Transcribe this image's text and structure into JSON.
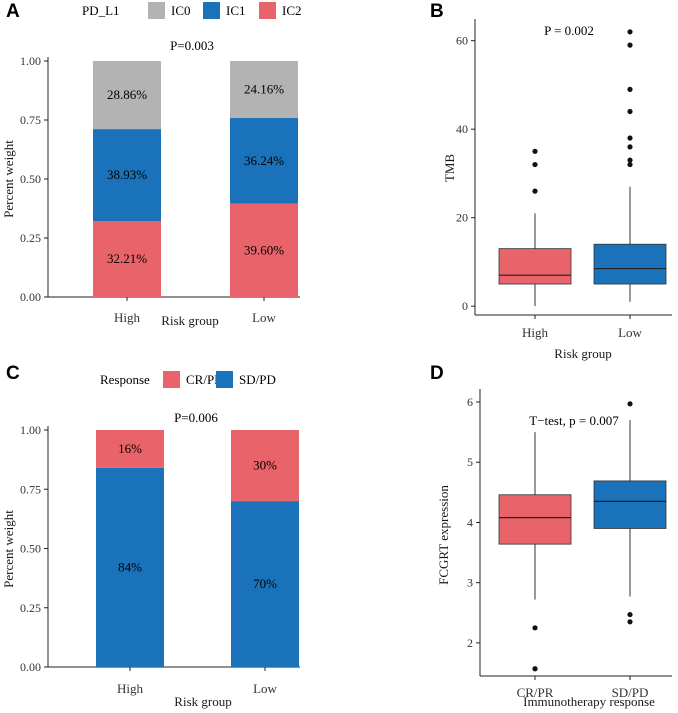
{
  "colors": {
    "gray": "#b3b3b3",
    "blue": "#1a73ba",
    "red": "#e9636a"
  },
  "chart_data": [
    {
      "panel": "A",
      "type": "bar",
      "stacked": true,
      "title": "P=0.003",
      "xlabel": "Risk group",
      "ylabel": "Percent weight",
      "ylim": [
        0,
        1
      ],
      "yticks": [
        "0.00",
        "0.25",
        "0.50",
        "0.75",
        "1.00"
      ],
      "legend_title": "PD_L1",
      "legend_position": "top",
      "categories": [
        "High",
        "Low"
      ],
      "series": [
        {
          "name": "IC2",
          "color": "#e9636a",
          "values": [
            0.3221,
            0.396
          ],
          "labels": [
            "32.21%",
            "39.60%"
          ]
        },
        {
          "name": "IC1",
          "color": "#1a73ba",
          "values": [
            0.3893,
            0.3624
          ],
          "labels": [
            "38.93%",
            "36.24%"
          ]
        },
        {
          "name": "IC0",
          "color": "#b3b3b3",
          "values": [
            0.2886,
            0.2416
          ],
          "labels": [
            "28.86%",
            "24.16%"
          ]
        }
      ],
      "legend_order": [
        "IC0",
        "IC1",
        "IC2"
      ]
    },
    {
      "panel": "B",
      "type": "box",
      "title": "P = 0.002",
      "xlabel": "Risk group",
      "ylabel": "TMB",
      "ylim": [
        -2,
        64
      ],
      "yticks": [
        0,
        20,
        40,
        60
      ],
      "categories": [
        "High",
        "Low"
      ],
      "boxes": [
        {
          "name": "High",
          "color": "#e9636a",
          "lower_whisker": 0,
          "q1": 5,
          "median": 7,
          "q3": 13,
          "upper_whisker": 21,
          "outliers": [
            26,
            32,
            35
          ]
        },
        {
          "name": "Low",
          "color": "#1a73ba",
          "lower_whisker": 1,
          "q1": 5,
          "median": 8.5,
          "q3": 14,
          "upper_whisker": 27,
          "outliers": [
            32,
            33,
            36,
            38,
            44,
            49,
            59,
            62
          ]
        }
      ]
    },
    {
      "panel": "C",
      "type": "bar",
      "stacked": true,
      "title": "P=0.006",
      "xlabel": "Risk group",
      "ylabel": "Percent weight",
      "ylim": [
        0,
        1
      ],
      "yticks": [
        "0.00",
        "0.25",
        "0.50",
        "0.75",
        "1.00"
      ],
      "legend_title": "Response",
      "legend_position": "top",
      "categories": [
        "High",
        "Low"
      ],
      "series": [
        {
          "name": "SD/PD",
          "color": "#1a73ba",
          "values": [
            0.84,
            0.7
          ],
          "labels": [
            "84%",
            "70%"
          ]
        },
        {
          "name": "CR/PR",
          "color": "#e9636a",
          "values": [
            0.16,
            0.3
          ],
          "labels": [
            "16%",
            "30%"
          ]
        }
      ],
      "legend_order": [
        "CR/PR",
        "SD/PD"
      ]
    },
    {
      "panel": "D",
      "type": "box",
      "title": "T−test, p = 0.007",
      "xlabel": "Immunotherapy response",
      "ylabel": "FCGRT expression",
      "ylim": [
        1.45,
        6.15
      ],
      "yticks": [
        2,
        3,
        4,
        5,
        6
      ],
      "categories": [
        "CR/PR",
        "SD/PD"
      ],
      "boxes": [
        {
          "name": "CR/PR",
          "color": "#e9636a",
          "lower_whisker": 2.72,
          "q1": 3.64,
          "median": 4.08,
          "q3": 4.46,
          "upper_whisker": 5.5,
          "outliers": [
            2.25,
            1.57
          ]
        },
        {
          "name": "SD/PD",
          "color": "#1a73ba",
          "lower_whisker": 2.77,
          "q1": 3.9,
          "median": 4.35,
          "q3": 4.69,
          "upper_whisker": 5.7,
          "outliers": [
            5.97,
            2.47,
            2.35
          ]
        }
      ]
    }
  ]
}
